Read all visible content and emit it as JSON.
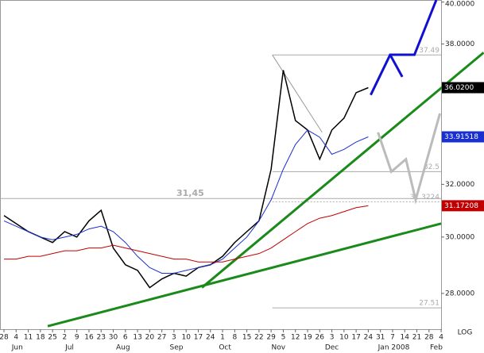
{
  "chart_data": {
    "type": "line",
    "log_scale": true,
    "log_label": "LOG",
    "categories": [
      "28",
      "4",
      "11",
      "18",
      "25",
      "2",
      "9",
      "16",
      "23",
      "30",
      "6",
      "13",
      "20",
      "27",
      "3",
      "10",
      "17",
      "24",
      "1",
      "8",
      "15",
      "22",
      "29",
      "5",
      "12",
      "19",
      "26",
      "3",
      "10",
      "17",
      "24",
      "31",
      "7",
      "14",
      "21",
      "28",
      "4"
    ],
    "months": [
      {
        "value": 1.1,
        "label": "Jun"
      },
      {
        "value": 5.4,
        "label": "Jul"
      },
      {
        "value": 9.8,
        "label": "Aug"
      },
      {
        "value": 14.2,
        "label": "Sep"
      },
      {
        "value": 18.2,
        "label": "Oct"
      },
      {
        "value": 22.6,
        "label": "Nov"
      },
      {
        "value": 27.0,
        "label": "Dec"
      },
      {
        "value": 32.1,
        "label": "Jan 2008"
      },
      {
        "value": 35.6,
        "label": "Feb"
      }
    ],
    "series": [
      {
        "name": "Price",
        "color": "#000000",
        "tag": "36.0200",
        "values": [
          30.8,
          30.5,
          30.2,
          30.0,
          29.8,
          30.2,
          30.0,
          30.6,
          31.0,
          29.6,
          29.0,
          28.8,
          28.2,
          28.5,
          28.7,
          28.6,
          28.9,
          29.0,
          29.3,
          29.8,
          30.2,
          30.6,
          32.6,
          36.8,
          34.6,
          34.2,
          33.0,
          34.2,
          34.7,
          35.8,
          36.02,
          null,
          null,
          null,
          null,
          null,
          null
        ]
      },
      {
        "name": "MA short",
        "color": "#1a2fd0",
        "tag": "33.91518",
        "values": [
          30.6,
          30.4,
          30.2,
          30.0,
          29.9,
          30.0,
          30.1,
          30.3,
          30.4,
          30.2,
          29.8,
          29.3,
          28.9,
          28.7,
          28.7,
          28.8,
          28.9,
          29.0,
          29.2,
          29.6,
          30.0,
          30.6,
          31.4,
          32.6,
          33.6,
          34.2,
          33.9,
          33.2,
          33.4,
          33.7,
          33.91518,
          null,
          null,
          null,
          null,
          null,
          null
        ]
      },
      {
        "name": "MA long",
        "color": "#c00000",
        "tag": "31.17208",
        "values": [
          29.2,
          29.2,
          29.3,
          29.3,
          29.4,
          29.5,
          29.5,
          29.6,
          29.6,
          29.7,
          29.6,
          29.5,
          29.4,
          29.3,
          29.2,
          29.2,
          29.1,
          29.1,
          29.1,
          29.2,
          29.3,
          29.4,
          29.6,
          29.9,
          30.2,
          30.5,
          30.7,
          30.8,
          30.95,
          31.1,
          31.17208,
          null,
          null,
          null,
          null,
          null,
          null
        ]
      }
    ],
    "drawings": [
      {
        "color": "#1a8a1a",
        "width": 3,
        "x": [
          16.3,
          39.5
        ],
        "values": [
          28.2,
          37.6
        ]
      },
      {
        "color": "#1a8a1a",
        "width": 3,
        "x": [
          3.6,
          36.0
        ],
        "values": [
          26.9,
          30.5
        ]
      },
      {
        "color": "#1010d0",
        "width": 3,
        "x": [
          30.2,
          31.8,
          33.8,
          35.6
        ],
        "values": [
          35.7,
          37.5,
          37.5,
          40.1
        ]
      },
      {
        "color": "#1010d0",
        "width": 3,
        "x": [
          31.8,
          32.8
        ],
        "values": [
          37.5,
          36.5
        ]
      },
      {
        "color": "#bbbbbb",
        "width": 3,
        "x": [
          30.8,
          31.9,
          33.1,
          33.9,
          35.9
        ],
        "values": [
          34.1,
          32.5,
          33.0,
          31.4,
          34.9
        ]
      },
      {
        "color": "#999999",
        "width": 1,
        "x": [
          22.1,
          26.2
        ],
        "values": [
          37.49,
          34.1
        ]
      }
    ],
    "levels": [
      {
        "value": 37.49,
        "from": 22.1,
        "label": "37.49"
      },
      {
        "value": 31.45,
        "from": -0.4,
        "label": "31,45"
      },
      {
        "value": 32.5,
        "from": 22.1,
        "label": "32.5"
      },
      {
        "value": 31.3224,
        "from": 22.1,
        "label": "31.3224"
      },
      {
        "value": 27.51,
        "from": 22.1,
        "label": "27.51"
      }
    ],
    "ylim": [
      26.8,
      40.1
    ],
    "yticks": [
      {
        "value": 28,
        "label": "28.0000"
      },
      {
        "value": 30,
        "label": "30.0000"
      },
      {
        "value": 32,
        "label": "32.0000"
      },
      {
        "value": 38,
        "label": "38.0000"
      },
      {
        "value": 40,
        "label": "40.0000"
      }
    ]
  }
}
